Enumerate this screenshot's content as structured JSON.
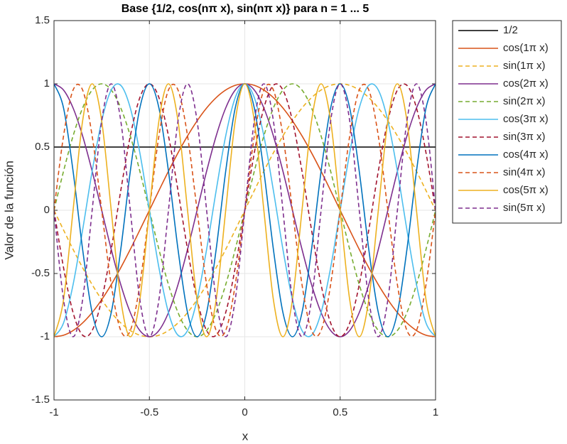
{
  "chart_data": {
    "type": "line",
    "title": "Base {1/2, cos(nπ x), sin(nπ x)} para n = 1 ... 5",
    "xlabel": "x",
    "ylabel": "Valor de la función",
    "xlim": [
      -1,
      1
    ],
    "ylim": [
      -1.5,
      1.5
    ],
    "xticks": [
      -1,
      -0.5,
      0,
      0.5,
      1
    ],
    "yticks": [
      -1.5,
      -1,
      -0.5,
      0,
      0.5,
      1,
      1.5
    ],
    "grid": true,
    "legend": "outside-right",
    "x": [
      -1,
      -0.95,
      -0.9,
      -0.85,
      -0.8,
      -0.75,
      -0.7,
      -0.65,
      -0.6,
      -0.55,
      -0.5,
      -0.45,
      -0.4,
      -0.35,
      -0.3,
      -0.25,
      -0.2,
      -0.15,
      -0.1,
      -0.05,
      0,
      0.05,
      0.1,
      0.15,
      0.2,
      0.25,
      0.3,
      0.35,
      0.4,
      0.45,
      0.5,
      0.55,
      0.6,
      0.65,
      0.7,
      0.75,
      0.8,
      0.85,
      0.9,
      0.95,
      1
    ],
    "series": [
      {
        "name": "1/2",
        "color": "#000000",
        "dash": false,
        "values": [
          0.5,
          0.5,
          0.5,
          0.5,
          0.5,
          0.5,
          0.5,
          0.5,
          0.5,
          0.5,
          0.5,
          0.5,
          0.5,
          0.5,
          0.5,
          0.5,
          0.5,
          0.5,
          0.5,
          0.5,
          0.5,
          0.5,
          0.5,
          0.5,
          0.5,
          0.5,
          0.5,
          0.5,
          0.5,
          0.5,
          0.5,
          0.5,
          0.5,
          0.5,
          0.5,
          0.5,
          0.5,
          0.5,
          0.5,
          0.5,
          0.5
        ]
      },
      {
        "name": "cos(1π x)",
        "color": "#D95319",
        "dash": false,
        "values": [
          -1,
          -0.988,
          -0.951,
          -0.891,
          -0.809,
          -0.707,
          -0.588,
          -0.454,
          -0.309,
          -0.156,
          0,
          0.156,
          0.309,
          0.454,
          0.588,
          0.707,
          0.809,
          0.891,
          0.951,
          0.988,
          1,
          0.988,
          0.951,
          0.891,
          0.809,
          0.707,
          0.588,
          0.454,
          0.309,
          0.156,
          0,
          -0.156,
          -0.309,
          -0.454,
          -0.588,
          -0.707,
          -0.809,
          -0.891,
          -0.951,
          -0.988,
          -1
        ]
      },
      {
        "name": "sin(1π x)",
        "color": "#EDB120",
        "dash": true,
        "values": [
          0,
          -0.156,
          -0.309,
          -0.454,
          -0.588,
          -0.707,
          -0.809,
          -0.891,
          -0.951,
          -0.988,
          -1,
          -0.988,
          -0.951,
          -0.891,
          -0.809,
          -0.707,
          -0.588,
          -0.454,
          -0.309,
          -0.156,
          0,
          0.156,
          0.309,
          0.454,
          0.588,
          0.707,
          0.809,
          0.891,
          0.951,
          0.988,
          1,
          0.988,
          0.951,
          0.891,
          0.809,
          0.707,
          0.588,
          0.454,
          0.309,
          0.156,
          0
        ]
      },
      {
        "name": "cos(2π x)",
        "color": "#7E2F8E",
        "dash": false,
        "values": [
          1,
          0.951,
          0.809,
          0.588,
          0.309,
          0,
          -0.309,
          -0.588,
          -0.809,
          -0.951,
          -1,
          -0.951,
          -0.809,
          -0.588,
          -0.309,
          0,
          0.309,
          0.588,
          0.809,
          0.951,
          1,
          0.951,
          0.809,
          0.588,
          0.309,
          0,
          -0.309,
          -0.588,
          -0.809,
          -0.951,
          -1,
          -0.951,
          -0.809,
          -0.588,
          -0.309,
          0,
          0.309,
          0.588,
          0.809,
          0.951,
          1
        ]
      },
      {
        "name": "sin(2π x)",
        "color": "#77AC30",
        "dash": true,
        "values": [
          0,
          0.309,
          0.588,
          0.809,
          0.951,
          1,
          0.951,
          0.809,
          0.588,
          0.309,
          0,
          -0.309,
          -0.588,
          -0.809,
          -0.951,
          -1,
          -0.951,
          -0.809,
          -0.588,
          -0.309,
          0,
          0.309,
          0.588,
          0.809,
          0.951,
          1,
          0.951,
          0.809,
          0.588,
          0.309,
          0,
          -0.309,
          -0.588,
          -0.809,
          -0.951,
          -1,
          -0.951,
          -0.809,
          -0.588,
          -0.309,
          0
        ]
      },
      {
        "name": "cos(3π x)",
        "color": "#4DBEEE",
        "dash": false,
        "values": [
          -1,
          -0.891,
          -0.588,
          -0.156,
          0.309,
          0.707,
          0.951,
          0.988,
          0.809,
          0.454,
          0,
          -0.454,
          -0.809,
          -0.988,
          -0.951,
          -0.707,
          -0.309,
          0.156,
          0.588,
          0.891,
          1,
          0.891,
          0.588,
          0.156,
          -0.309,
          -0.707,
          -0.951,
          -0.988,
          -0.809,
          -0.454,
          0,
          0.454,
          0.809,
          0.988,
          0.951,
          0.707,
          0.309,
          -0.156,
          -0.588,
          -0.891,
          -1
        ]
      },
      {
        "name": "sin(3π x)",
        "color": "#A2142F",
        "dash": true,
        "values": [
          0,
          -0.454,
          -0.809,
          -0.988,
          -0.951,
          -0.707,
          -0.309,
          0.156,
          0.588,
          0.891,
          1,
          0.891,
          0.588,
          0.156,
          -0.309,
          -0.707,
          -0.951,
          -0.988,
          -0.809,
          -0.454,
          0,
          0.454,
          0.809,
          0.988,
          0.951,
          0.707,
          0.309,
          -0.156,
          -0.588,
          -0.891,
          -1,
          -0.891,
          -0.588,
          -0.156,
          0.309,
          0.707,
          0.951,
          0.988,
          0.809,
          0.454,
          0
        ]
      },
      {
        "name": "cos(4π x)",
        "color": "#0072BD",
        "dash": false,
        "values": [
          1,
          0.809,
          0.309,
          -0.309,
          -0.809,
          -1,
          -0.809,
          -0.309,
          0.309,
          0.809,
          1,
          0.809,
          0.309,
          -0.309,
          -0.809,
          -1,
          -0.809,
          -0.309,
          0.309,
          0.809,
          1,
          0.809,
          0.309,
          -0.309,
          -0.809,
          -1,
          -0.809,
          -0.309,
          0.309,
          0.809,
          1,
          0.809,
          0.309,
          -0.309,
          -0.809,
          -1,
          -0.809,
          -0.309,
          0.309,
          0.809,
          1
        ]
      },
      {
        "name": "sin(4π x)",
        "color": "#D95319",
        "dash": true,
        "values": [
          0,
          0.588,
          0.951,
          0.951,
          0.588,
          0,
          -0.588,
          -0.951,
          -0.951,
          -0.588,
          0,
          0.588,
          0.951,
          0.951,
          0.588,
          0,
          -0.588,
          -0.951,
          -0.951,
          -0.588,
          0,
          0.588,
          0.951,
          0.951,
          0.588,
          0,
          -0.588,
          -0.951,
          -0.951,
          -0.588,
          0,
          0.588,
          0.951,
          0.951,
          0.588,
          0,
          -0.588,
          -0.951,
          -0.951,
          -0.588,
          0
        ]
      },
      {
        "name": "cos(5π x)",
        "color": "#EDB120",
        "dash": false,
        "values": [
          -1,
          -0.707,
          0,
          0.707,
          1,
          0.707,
          0,
          -0.707,
          -1,
          -0.707,
          0,
          0.707,
          1,
          0.707,
          0,
          -0.707,
          -1,
          -0.707,
          0,
          0.707,
          1,
          0.707,
          0,
          -0.707,
          -1,
          -0.707,
          0,
          0.707,
          1,
          0.707,
          0,
          -0.707,
          -1,
          -0.707,
          0,
          0.707,
          1,
          0.707,
          0,
          -0.707,
          -1
        ]
      },
      {
        "name": "sin(5π x)",
        "color": "#7E2F8E",
        "dash": true,
        "values": [
          0,
          -0.707,
          -1,
          -0.707,
          0,
          0.707,
          1,
          0.707,
          0,
          -0.707,
          -1,
          -0.707,
          0,
          0.707,
          1,
          0.707,
          0,
          -0.707,
          -1,
          -0.707,
          0,
          0.707,
          1,
          0.707,
          0,
          -0.707,
          -1,
          -0.707,
          0,
          0.707,
          1,
          0.707,
          0,
          -0.707,
          -1,
          -0.707,
          0,
          0.707,
          1,
          0.707,
          0
        ]
      }
    ]
  }
}
